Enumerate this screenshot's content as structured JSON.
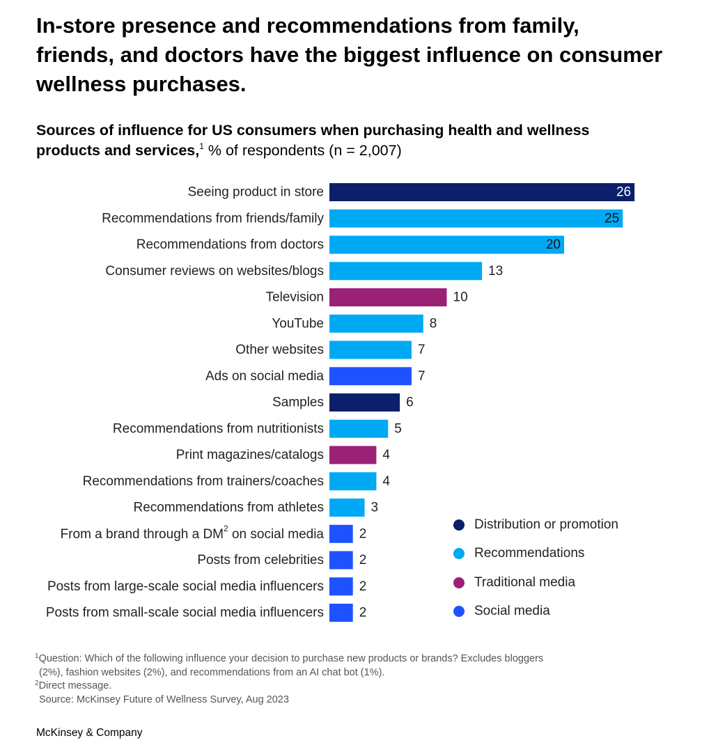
{
  "title": "In-store presence and recommendations from family, friends, and doctors have the biggest influence on consumer wellness purchases.",
  "subtitle": {
    "bold": "Sources of influence for US consumers when purchasing health and wellness products and services,",
    "sup": "1",
    "rest": " % of respondents (n = 2,007)"
  },
  "colors": {
    "distribution": "#0B1F6B",
    "recommendations": "#00A9F4",
    "traditional": "#9B2177",
    "social": "#1F52FF"
  },
  "chart_data": {
    "type": "bar",
    "orientation": "horizontal",
    "categories": [
      "Seeing product in store",
      "Recommendations from friends/family",
      "Recommendations from doctors",
      "Consumer reviews on websites/blogs",
      "Television",
      "YouTube",
      "Other websites",
      "Ads on social media",
      "Samples",
      "Recommendations from nutritionists",
      "Print magazines/catalogs",
      "Recommendations from trainers/coaches",
      "Recommendations from athletes",
      "From a brand through a DM² on social media",
      "Posts from celebrities",
      "Posts from large-scale social media influencers",
      "Posts from small-scale social media influencers"
    ],
    "values": [
      26,
      25,
      20,
      13,
      10,
      8,
      7,
      7,
      6,
      5,
      4,
      4,
      3,
      2,
      2,
      2,
      2
    ],
    "groups": [
      "distribution",
      "recommendations",
      "recommendations",
      "recommendations",
      "traditional",
      "recommendations",
      "recommendations",
      "social",
      "distribution",
      "recommendations",
      "traditional",
      "recommendations",
      "recommendations",
      "social",
      "social",
      "social",
      "social"
    ],
    "legend": [
      {
        "key": "distribution",
        "label": "Distribution or promotion"
      },
      {
        "key": "recommendations",
        "label": "Recommendations"
      },
      {
        "key": "traditional",
        "label": "Traditional media"
      },
      {
        "key": "social",
        "label": "Social media"
      }
    ],
    "legend_position": "bottom-right",
    "grid": false
  },
  "footnotes": {
    "note1_sup": "1",
    "note1_line1": "Question: Which of the following influence your decision to purchase new products or brands? Excludes bloggers",
    "note1_line2": "(2%), fashion websites (2%), and recommendations from an AI chat bot (1%).",
    "note2_sup": "2",
    "note2": "Direct message.",
    "source": "Source: McKinsey Future of Wellness Survey, Aug 2023"
  },
  "brand": "McKinsey & Company"
}
